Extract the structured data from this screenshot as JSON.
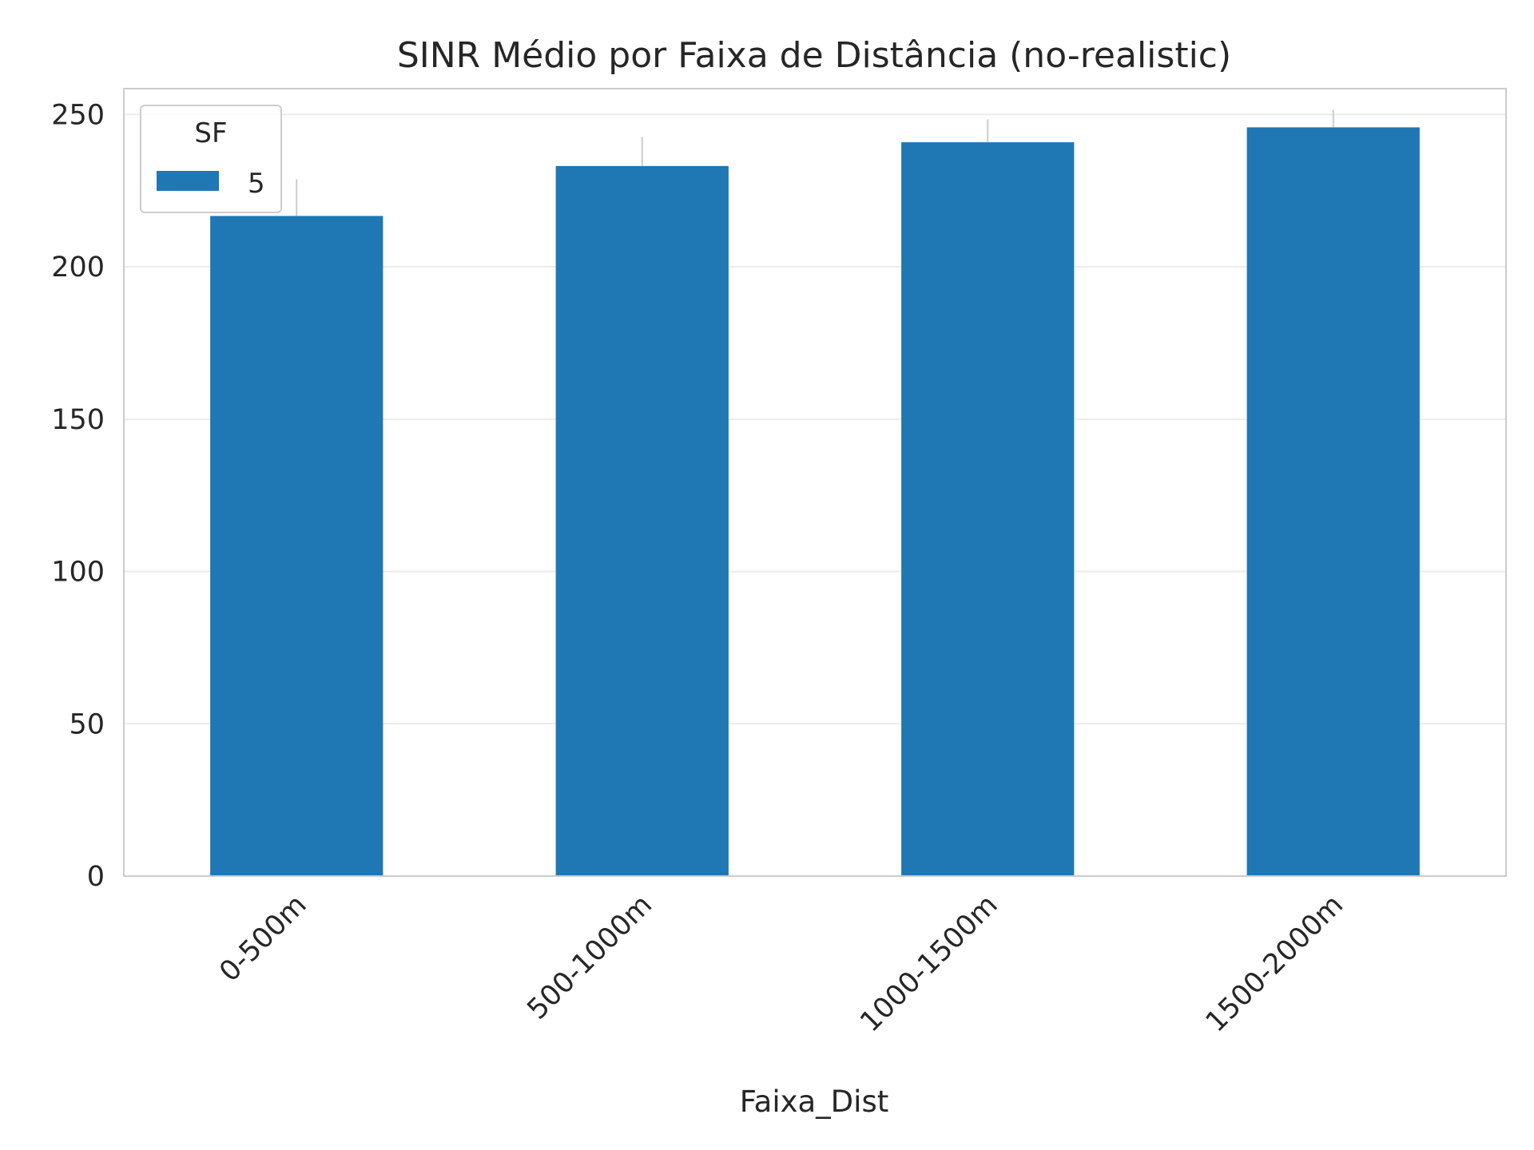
{
  "chart_data": {
    "type": "bar",
    "title": "SINR Médio por Faixa de Distância (no-realistic)",
    "xlabel": "Faixa_Dist",
    "ylabel": "",
    "categories": [
      "0-500m",
      "500-1000m",
      "1000-1500m",
      "1500-2000m"
    ],
    "series": [
      {
        "name": "5",
        "values": [
          216.7,
          233.1,
          240.9,
          245.8
        ],
        "color": "#1f77b4"
      }
    ],
    "error_bar_tops": [
      228.8,
      242.7,
      248.4,
      251.5
    ],
    "yticks": [
      0,
      50,
      100,
      150,
      200,
      250
    ],
    "ylim": [
      0,
      258.5
    ],
    "grid": true,
    "legend": {
      "title": "SF",
      "position": "top-left"
    }
  }
}
